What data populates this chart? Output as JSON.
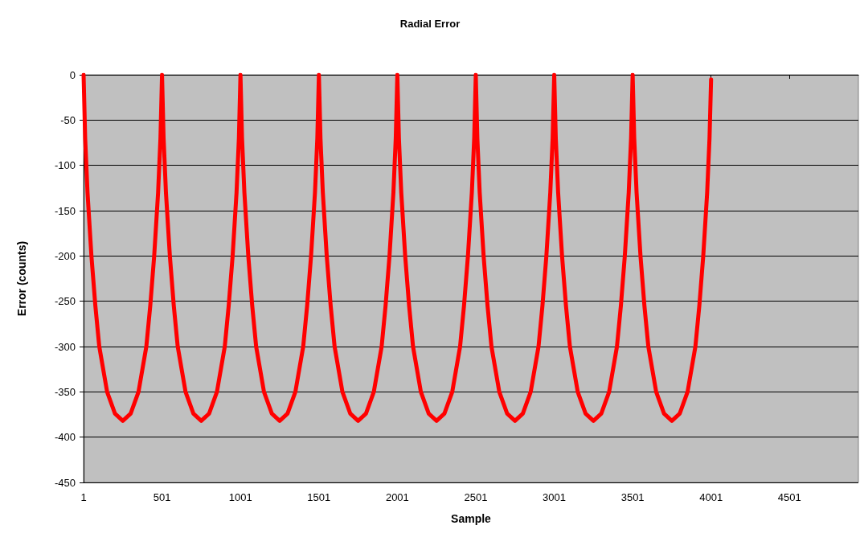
{
  "chart_data": {
    "type": "line",
    "title": "Radial Error",
    "xlabel": "Sample",
    "ylabel": "Error (counts)",
    "xlim": [
      1,
      4940
    ],
    "xticks": [
      1,
      501,
      1001,
      1501,
      2001,
      2501,
      3001,
      3501,
      4001,
      4501
    ],
    "ylim": [
      -450,
      0
    ],
    "yticks": [
      -450,
      -400,
      -350,
      -300,
      -250,
      -200,
      -150,
      -100,
      -50,
      0
    ],
    "grid": "y",
    "marker": "none",
    "line_style": "solid",
    "series": [
      {
        "color": "#ff0000",
        "x": [
          1,
          11,
          26,
          51,
          76,
          101,
          151,
          201,
          251,
          301,
          351,
          401,
          426,
          451,
          476,
          491,
          501,
          511,
          526,
          551,
          576,
          601,
          651,
          701,
          751,
          801,
          851,
          901,
          926,
          951,
          976,
          991,
          1001,
          1011,
          1026,
          1051,
          1076,
          1101,
          1151,
          1201,
          1251,
          1301,
          1351,
          1401,
          1426,
          1451,
          1476,
          1491,
          1501,
          1511,
          1526,
          1551,
          1576,
          1601,
          1651,
          1701,
          1751,
          1801,
          1851,
          1901,
          1926,
          1951,
          1976,
          1991,
          2001,
          2011,
          2026,
          2051,
          2076,
          2101,
          2151,
          2201,
          2251,
          2301,
          2351,
          2401,
          2426,
          2451,
          2476,
          2491,
          2501,
          2511,
          2526,
          2551,
          2576,
          2601,
          2651,
          2701,
          2751,
          2801,
          2851,
          2901,
          2926,
          2951,
          2976,
          2991,
          3001,
          3011,
          3026,
          3051,
          3076,
          3101,
          3151,
          3201,
          3251,
          3301,
          3351,
          3401,
          3426,
          3451,
          3476,
          3491,
          3501,
          3511,
          3526,
          3551,
          3576,
          3601,
          3651,
          3701,
          3751,
          3801,
          3851,
          3901,
          3926,
          3951,
          3976,
          3991,
          4001
        ],
        "values": [
          0,
          -70,
          -130,
          -200,
          -255,
          -300,
          -350,
          -374,
          -382,
          -374,
          -350,
          -300,
          -255,
          -200,
          -130,
          -70,
          0,
          -70,
          -130,
          -200,
          -255,
          -300,
          -350,
          -374,
          -382,
          -374,
          -350,
          -300,
          -255,
          -200,
          -130,
          -70,
          0,
          -70,
          -130,
          -200,
          -255,
          -300,
          -350,
          -374,
          -382,
          -374,
          -350,
          -300,
          -255,
          -200,
          -130,
          -70,
          0,
          -70,
          -130,
          -200,
          -255,
          -300,
          -350,
          -374,
          -382,
          -374,
          -350,
          -300,
          -255,
          -200,
          -130,
          -70,
          0,
          -70,
          -130,
          -200,
          -255,
          -300,
          -350,
          -374,
          -382,
          -374,
          -350,
          -300,
          -255,
          -200,
          -130,
          -70,
          0,
          -70,
          -130,
          -200,
          -255,
          -300,
          -350,
          -374,
          -382,
          -374,
          -350,
          -300,
          -255,
          -200,
          -130,
          -70,
          0,
          -70,
          -130,
          -200,
          -255,
          -300,
          -350,
          -374,
          -382,
          -374,
          -350,
          -300,
          -255,
          -200,
          -130,
          -70,
          0,
          -70,
          -130,
          -200,
          -255,
          -300,
          -350,
          -374,
          -382,
          -374,
          -350,
          -300,
          -255,
          -200,
          -130,
          -70,
          -5
        ]
      }
    ]
  }
}
